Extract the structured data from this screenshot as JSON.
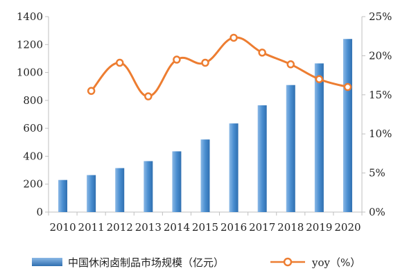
{
  "colors": {
    "bar": "#4a8ed0",
    "bar_light": "#8ab8e6",
    "bar_dark": "#2f6fb0",
    "line": "#ed7d31",
    "axis": "#bfbfbf"
  },
  "chart_data": {
    "type": "bar",
    "categories": [
      "2010",
      "2011",
      "2012",
      "2013",
      "2014",
      "2015",
      "2016",
      "2017",
      "2018",
      "2019",
      "2020"
    ],
    "series": [
      {
        "name": "中国休闲卤制品市场规模（亿元）",
        "type": "bar",
        "axis": "left",
        "values": [
          230,
          265,
          315,
          365,
          435,
          520,
          635,
          765,
          910,
          1065,
          1240
        ]
      },
      {
        "name": "yoy（%）",
        "type": "line",
        "axis": "right",
        "values": [
          null,
          15.5,
          19.1,
          14.8,
          19.5,
          19.1,
          22.3,
          20.4,
          18.9,
          17.0,
          16.0
        ]
      }
    ],
    "y_left": {
      "min": 0,
      "max": 1400,
      "ticks": [
        "0",
        "200",
        "400",
        "600",
        "800",
        "1000",
        "1200",
        "1400"
      ]
    },
    "y_right": {
      "min": 0,
      "max": 25,
      "ticks": [
        "0%",
        "5%",
        "10%",
        "15%",
        "20%",
        "25%"
      ]
    },
    "title": "",
    "xlabel": "",
    "ylabel": "",
    "grid": false,
    "legend_position": "bottom"
  }
}
